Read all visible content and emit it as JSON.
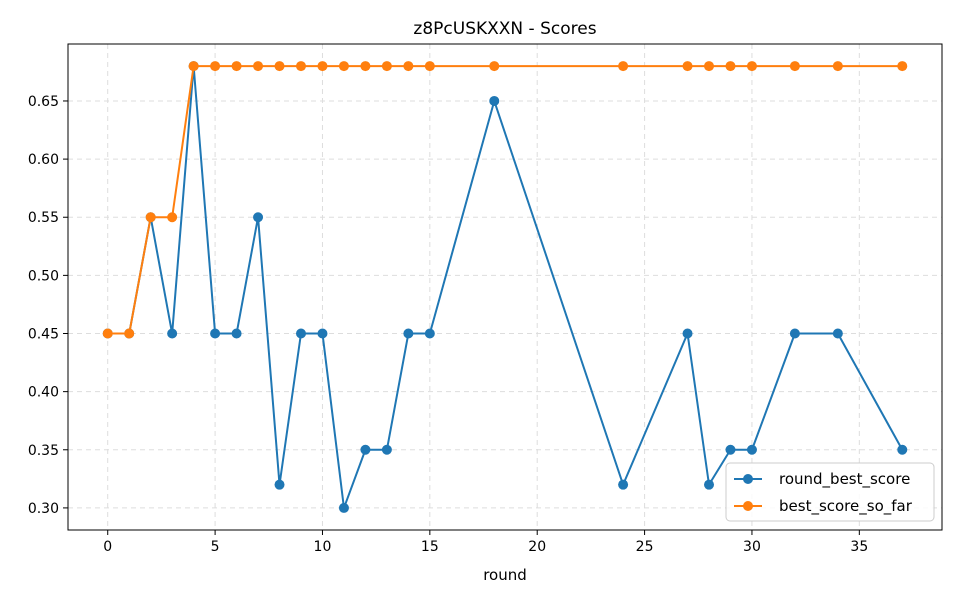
{
  "chart_data": {
    "type": "line",
    "title": "z8PcUSKXXN - Scores",
    "xlabel": "round",
    "ylabel": "",
    "xlim": [
      -1.85,
      38.85
    ],
    "ylim": [
      0.281,
      0.699
    ],
    "xticks": [
      0,
      5,
      10,
      15,
      20,
      25,
      30,
      35
    ],
    "yticks": [
      0.3,
      0.35,
      0.4,
      0.45,
      0.5,
      0.55,
      0.6,
      0.65
    ],
    "xtick_labels": [
      "0",
      "5",
      "10",
      "15",
      "20",
      "25",
      "30",
      "35"
    ],
    "ytick_labels": [
      "0.30",
      "0.35",
      "0.40",
      "0.45",
      "0.50",
      "0.55",
      "0.60",
      "0.65"
    ],
    "grid": true,
    "legend_position": "bottom-right",
    "x": [
      0,
      1,
      2,
      3,
      4,
      5,
      6,
      7,
      8,
      9,
      10,
      11,
      12,
      13,
      14,
      15,
      18,
      24,
      27,
      28,
      29,
      30,
      32,
      34,
      37
    ],
    "series": [
      {
        "name": "round_best_score",
        "color": "#1f77b4",
        "values": [
          0.45,
          0.45,
          0.55,
          0.45,
          0.68,
          0.45,
          0.45,
          0.55,
          0.32,
          0.45,
          0.45,
          0.3,
          0.35,
          0.35,
          0.45,
          0.45,
          0.65,
          0.32,
          0.45,
          0.32,
          0.35,
          0.35,
          0.45,
          0.45,
          0.35
        ]
      },
      {
        "name": "best_score_so_far",
        "color": "#ff7f0e",
        "values": [
          0.45,
          0.45,
          0.55,
          0.55,
          0.68,
          0.68,
          0.68,
          0.68,
          0.68,
          0.68,
          0.68,
          0.68,
          0.68,
          0.68,
          0.68,
          0.68,
          0.68,
          0.68,
          0.68,
          0.68,
          0.68,
          0.68,
          0.68,
          0.68,
          0.68
        ]
      }
    ]
  }
}
